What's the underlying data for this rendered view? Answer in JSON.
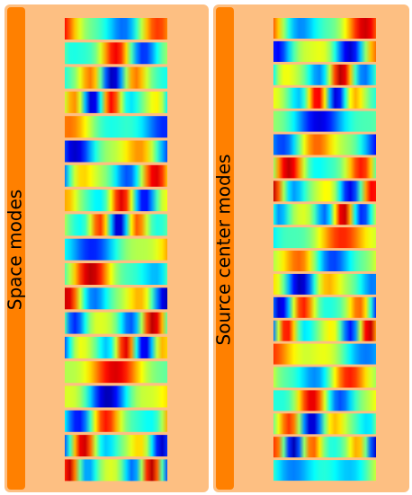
{
  "panels": [
    {
      "label": "Space modes"
    },
    {
      "label": "Source center modes"
    }
  ]
}
